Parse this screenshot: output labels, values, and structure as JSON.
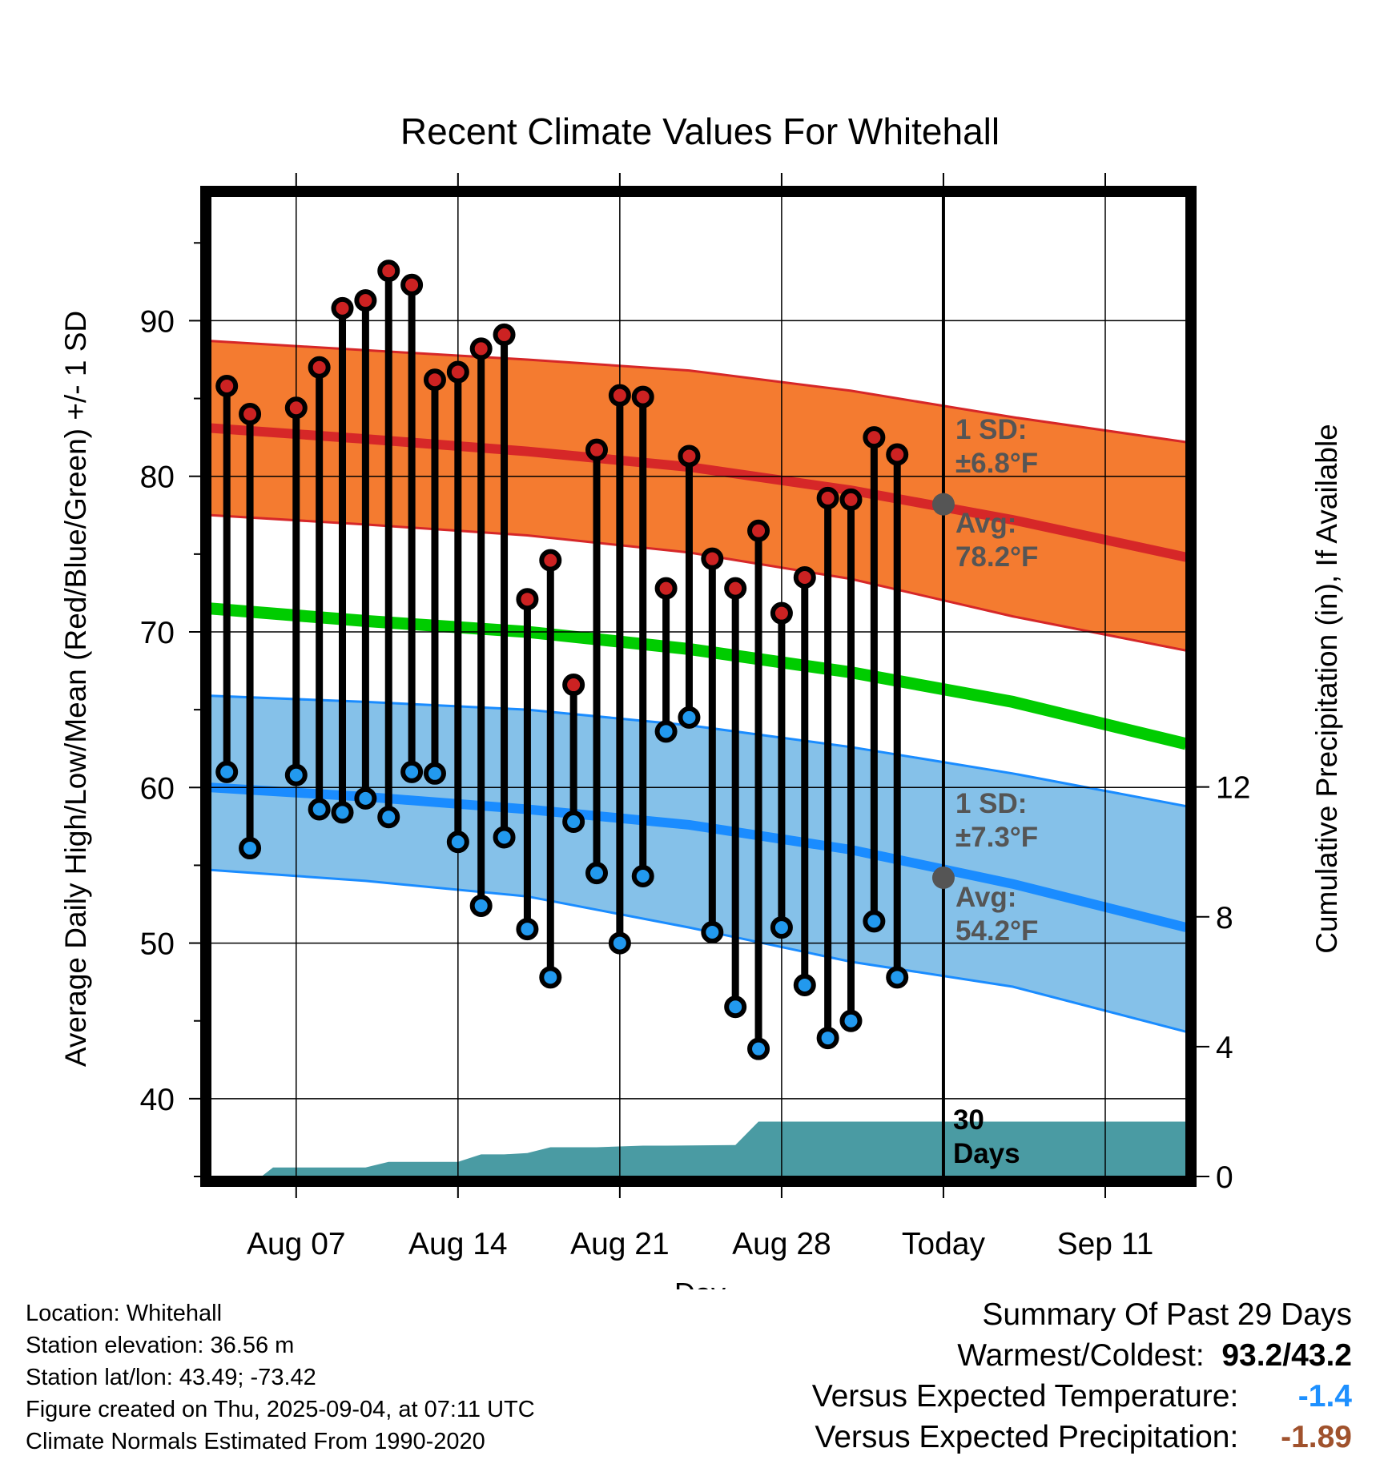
{
  "chart_data": {
    "type": "line",
    "title": "Recent Climate Values For Whitehall",
    "xlabel": "Day",
    "ylabel": "Average Daily High/Low/Mean (Red/Blue/Green) +/- 1 SD",
    "ylabel_right": "Cumulative Precipitation (in), If Available",
    "x_start_date": "Aug 04",
    "x_range_days": [
      -0.7,
      41.5
    ],
    "ylim": [
      35,
      98
    ],
    "ylim_right": [
      0,
      30.2
    ],
    "x_tick_days": [
      3,
      10,
      17,
      24,
      31,
      38
    ],
    "x_tick_labels": [
      "Aug 07",
      "Aug 14",
      "Aug 21",
      "Aug 28",
      "Today",
      "Sep 11"
    ],
    "y_ticks": [
      40,
      50,
      60,
      70,
      80,
      90
    ],
    "y_ticks_right": [
      0,
      4,
      8,
      12
    ],
    "today_day": 31,
    "grid": true,
    "observed": {
      "days": [
        0,
        1,
        3,
        4,
        5,
        6,
        7,
        8,
        9,
        10,
        11,
        12,
        13,
        14,
        15,
        16,
        17,
        18,
        19,
        20,
        21,
        22,
        23,
        24,
        25,
        26,
        27,
        28,
        29,
        30
      ],
      "high": [
        85.8,
        84.0,
        84.4,
        87.0,
        90.8,
        91.3,
        93.2,
        92.3,
        86.2,
        86.7,
        88.2,
        89.1,
        72.1,
        74.6,
        66.6,
        81.7,
        85.2,
        85.1,
        72.8,
        81.3,
        74.7,
        72.8,
        76.5,
        71.2,
        73.5,
        78.6,
        78.5,
        82.5,
        81.4,
        null
      ],
      "low": [
        61.0,
        56.1,
        60.8,
        58.6,
        58.4,
        59.3,
        58.1,
        61.0,
        60.9,
        56.5,
        52.4,
        56.8,
        50.9,
        47.8,
        57.8,
        54.5,
        50.0,
        54.3,
        63.6,
        64.5,
        50.7,
        45.9,
        43.2,
        51.0,
        47.3,
        43.9,
        45.0,
        51.4,
        47.8,
        null
      ]
    },
    "normals": {
      "days": [
        -0.7,
        6,
        13,
        20,
        27,
        34,
        41.5
      ],
      "high_mean": [
        83.1,
        82.4,
        81.6,
        80.6,
        79.1,
        77.2,
        74.8
      ],
      "high_sd_upper": [
        88.7,
        88.1,
        87.5,
        86.8,
        85.5,
        83.8,
        82.2
      ],
      "high_sd_lower": [
        77.5,
        76.9,
        76.2,
        75.1,
        73.4,
        71.0,
        68.8
      ],
      "mean": [
        71.5,
        70.7,
        70.0,
        68.9,
        67.4,
        65.5,
        62.8
      ],
      "low_mean": [
        60.0,
        59.4,
        58.6,
        57.6,
        56.0,
        53.8,
        51.0
      ],
      "low_sd_upper": [
        65.9,
        65.5,
        65.0,
        64.0,
        62.6,
        60.9,
        58.8
      ],
      "low_sd_lower": [
        54.7,
        54.0,
        53.0,
        51.0,
        48.8,
        47.2,
        44.3
      ]
    },
    "precipitation": {
      "days": [
        1.5,
        2.0,
        6.0,
        7.0,
        8.0,
        10.0,
        11.0,
        12.0,
        13.0,
        14.0,
        15.0,
        16.0,
        18.0,
        19.0,
        22.0,
        23.0,
        41.5
      ],
      "cumulative": [
        0,
        0.28,
        0.28,
        0.45,
        0.45,
        0.45,
        0.68,
        0.68,
        0.72,
        0.9,
        0.9,
        0.9,
        0.95,
        0.95,
        0.97,
        1.69,
        1.69
      ]
    },
    "annotations": {
      "high_sd": "1 SD:",
      "high_sd_value": "±6.8°F",
      "high_avg": "Avg:",
      "high_avg_value": "78.2°F",
      "low_sd": "1 SD:",
      "low_sd_value": "±7.3°F",
      "low_avg": "Avg:",
      "low_avg_value": "54.2°F",
      "today_high_avg": 78.2,
      "today_low_avg": 54.2,
      "precip_label": "30 Days"
    },
    "colors": {
      "high_band": "#f47b30",
      "high_line": "#d62728",
      "low_band": "#85c1e9",
      "low_line": "#1a8cff",
      "mean_line": "#00cc00",
      "precip_fill": "#4a9ba3",
      "high_dot": "#cc2222",
      "low_dot": "#2299ee",
      "annotation": "#555555"
    }
  },
  "station": {
    "location": "Location: Whitehall",
    "elevation": "Station elevation: 36.56 m",
    "latlon": "Station lat/lon: 43.49; -73.42",
    "created": "Figure created on Thu, 2025-09-04, at 07:11 UTC",
    "normals": "Climate Normals Estimated From 1990-2020"
  },
  "summary": {
    "title": "Summary Of Past 29 Days",
    "warmest_label": "Warmest/Coldest:",
    "warmest_value": "93.2/43.2",
    "temp_label": "Versus Expected Temperature:",
    "temp_value": "-1.4",
    "temp_color": "#1e90ff",
    "precip_label": "Versus Expected Precipitation:",
    "precip_value": "-1.89",
    "precip_color": "#a0522d"
  }
}
